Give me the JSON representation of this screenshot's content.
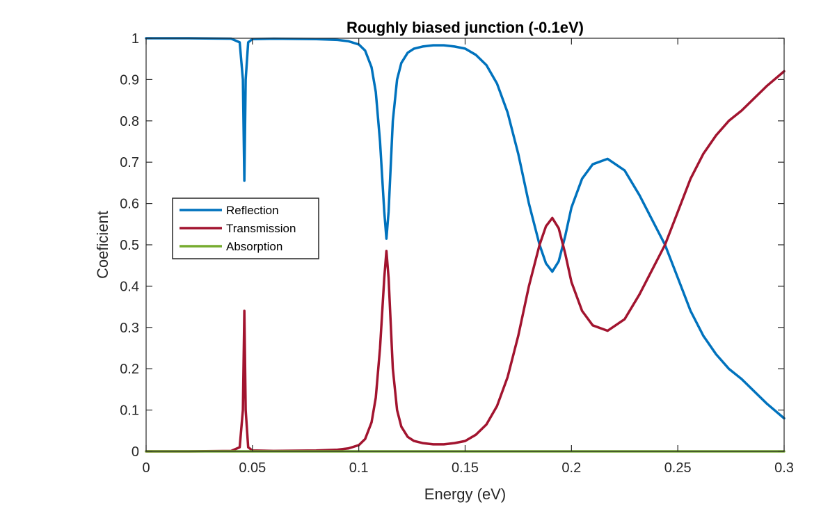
{
  "chart_data": {
    "type": "line",
    "title": "Roughly biased junction (-0.1eV)",
    "xlabel": "Energy (eV)",
    "ylabel": "Coeficient",
    "xlim": [
      0,
      0.3
    ],
    "ylim": [
      0,
      1
    ],
    "xticks": [
      0,
      0.05,
      0.1,
      0.15,
      0.2,
      0.25,
      0.3
    ],
    "xtick_labels": [
      "0",
      "0.05",
      "0.1",
      "0.15",
      "0.2",
      "0.25",
      "0.3"
    ],
    "yticks": [
      0,
      0.1,
      0.2,
      0.3,
      0.4,
      0.5,
      0.6,
      0.7,
      0.8,
      0.9,
      1
    ],
    "ytick_labels": [
      "0",
      "0.1",
      "0.2",
      "0.3",
      "0.4",
      "0.5",
      "0.6",
      "0.7",
      "0.8",
      "0.9",
      "1"
    ],
    "grid": false,
    "box": true,
    "legend_position": "middle-left",
    "series": [
      {
        "name": "Reflection",
        "color": "#0072BD",
        "x": [
          0,
          0.02,
          0.04,
          0.044,
          0.0455,
          0.0462,
          0.0468,
          0.048,
          0.05,
          0.06,
          0.08,
          0.09,
          0.095,
          0.1,
          0.103,
          0.106,
          0.108,
          0.11,
          0.112,
          0.113,
          0.114,
          0.116,
          0.118,
          0.12,
          0.123,
          0.126,
          0.13,
          0.135,
          0.14,
          0.145,
          0.15,
          0.155,
          0.16,
          0.165,
          0.17,
          0.175,
          0.18,
          0.185,
          0.188,
          0.191,
          0.194,
          0.197,
          0.2,
          0.205,
          0.21,
          0.217,
          0.225,
          0.232,
          0.238,
          0.244,
          0.25,
          0.256,
          0.262,
          0.268,
          0.274,
          0.28,
          0.286,
          0.292,
          0.3
        ],
        "y": [
          1.0,
          1.0,
          0.999,
          0.99,
          0.9,
          0.655,
          0.9,
          0.99,
          0.998,
          0.999,
          0.998,
          0.996,
          0.993,
          0.985,
          0.97,
          0.93,
          0.87,
          0.75,
          0.58,
          0.515,
          0.58,
          0.8,
          0.9,
          0.94,
          0.965,
          0.975,
          0.98,
          0.983,
          0.983,
          0.98,
          0.975,
          0.96,
          0.935,
          0.89,
          0.82,
          0.72,
          0.6,
          0.5,
          0.455,
          0.435,
          0.46,
          0.52,
          0.59,
          0.66,
          0.695,
          0.708,
          0.68,
          0.62,
          0.56,
          0.5,
          0.42,
          0.34,
          0.28,
          0.235,
          0.2,
          0.175,
          0.145,
          0.115,
          0.08
        ]
      },
      {
        "name": "Transmission",
        "color": "#A2142F",
        "x": [
          0,
          0.02,
          0.04,
          0.044,
          0.0455,
          0.0462,
          0.0468,
          0.048,
          0.05,
          0.06,
          0.08,
          0.09,
          0.095,
          0.1,
          0.103,
          0.106,
          0.108,
          0.11,
          0.112,
          0.113,
          0.114,
          0.116,
          0.118,
          0.12,
          0.123,
          0.126,
          0.13,
          0.135,
          0.14,
          0.145,
          0.15,
          0.155,
          0.16,
          0.165,
          0.17,
          0.175,
          0.18,
          0.185,
          0.188,
          0.191,
          0.194,
          0.197,
          0.2,
          0.205,
          0.21,
          0.217,
          0.225,
          0.232,
          0.238,
          0.244,
          0.25,
          0.256,
          0.262,
          0.268,
          0.274,
          0.28,
          0.286,
          0.292,
          0.3
        ],
        "y": [
          0.0,
          0.0,
          0.001,
          0.01,
          0.1,
          0.34,
          0.1,
          0.01,
          0.002,
          0.001,
          0.002,
          0.004,
          0.007,
          0.015,
          0.03,
          0.07,
          0.13,
          0.25,
          0.42,
          0.485,
          0.42,
          0.2,
          0.1,
          0.06,
          0.035,
          0.025,
          0.02,
          0.017,
          0.017,
          0.02,
          0.025,
          0.04,
          0.065,
          0.11,
          0.18,
          0.28,
          0.4,
          0.5,
          0.545,
          0.565,
          0.54,
          0.48,
          0.41,
          0.34,
          0.305,
          0.292,
          0.32,
          0.38,
          0.44,
          0.5,
          0.58,
          0.66,
          0.72,
          0.765,
          0.8,
          0.825,
          0.855,
          0.885,
          0.92
        ]
      },
      {
        "name": "Absorption",
        "color": "#77AC30",
        "x": [
          0,
          0.3
        ],
        "y": [
          0.0,
          0.0
        ]
      }
    ]
  }
}
